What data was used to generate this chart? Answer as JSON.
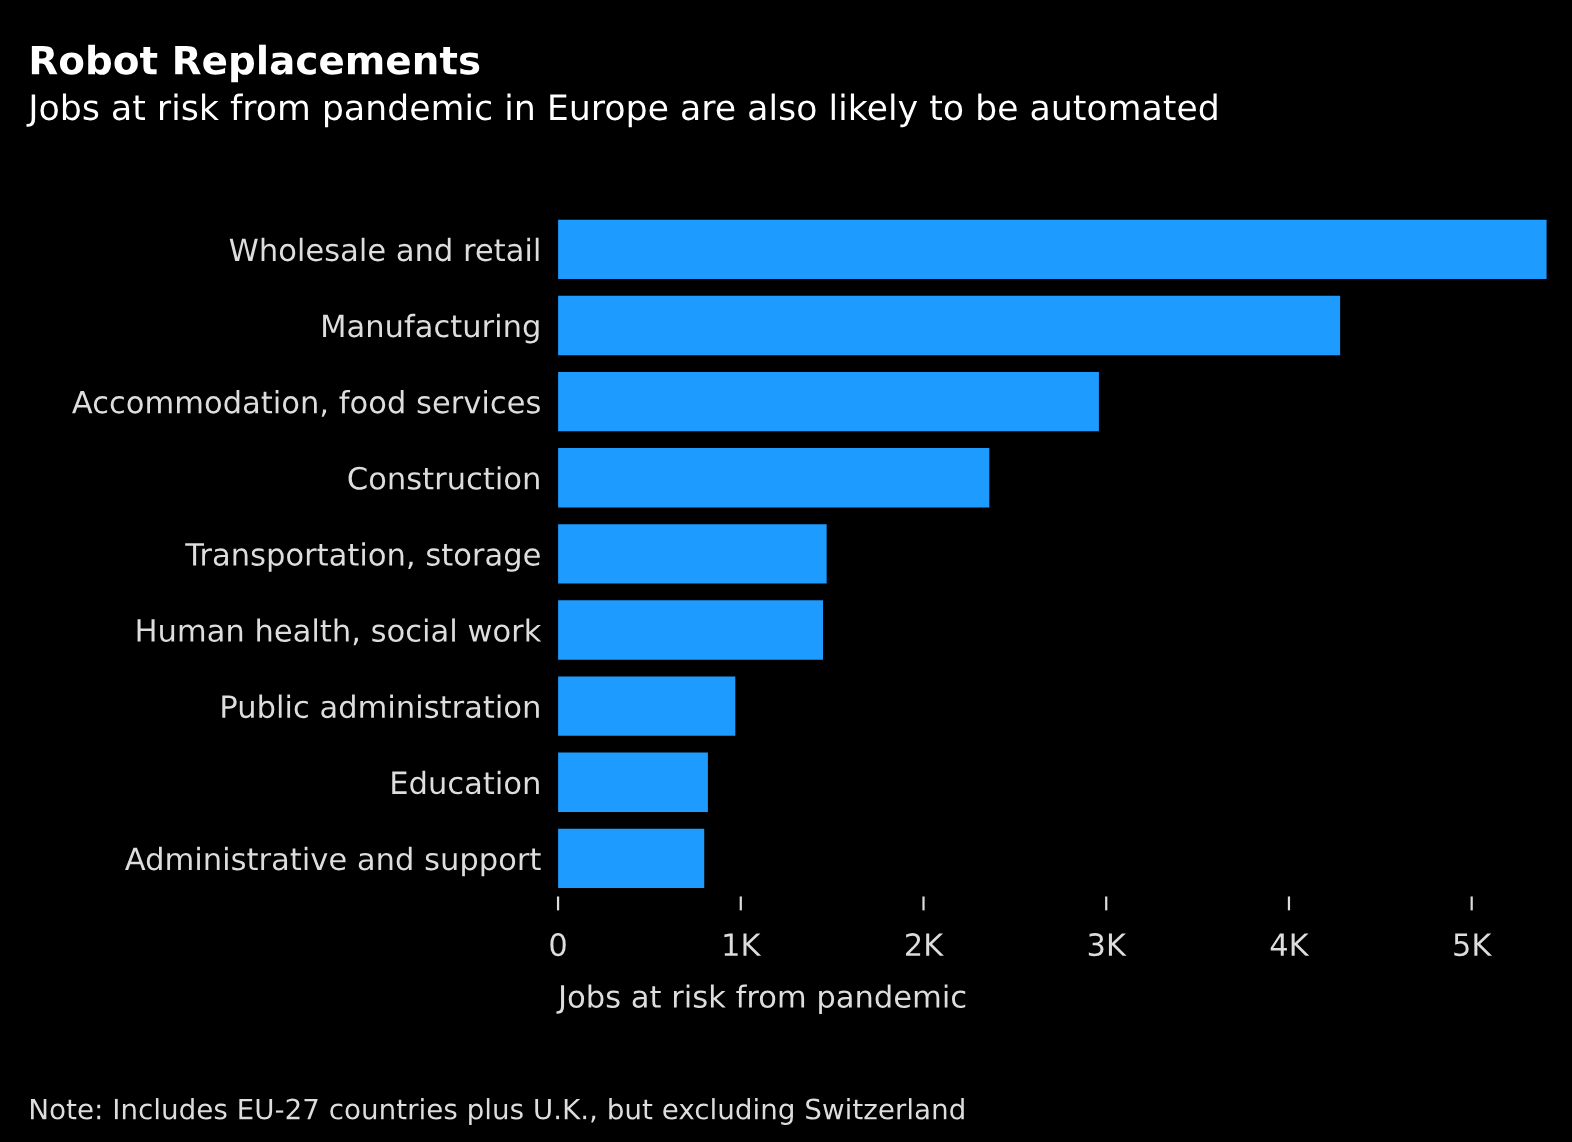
{
  "chart_data": {
    "type": "bar",
    "orientation": "horizontal",
    "title": "Robot Replacements",
    "subtitle": "Jobs at risk from pandemic in Europe are also likely to be automated",
    "xlabel": "Jobs at risk from pandemic",
    "categories": [
      "Wholesale and retail",
      "Manufacturing",
      "Accommodation, food services",
      "Construction",
      "Transportation, storage",
      "Human health, social work",
      "Public administration",
      "Education",
      "Administrative and support"
    ],
    "values": [
      5410,
      4280,
      2960,
      2360,
      1470,
      1450,
      970,
      820,
      800
    ],
    "color": "#1e9bff",
    "xlim": [
      0,
      5420
    ],
    "xticks": [
      0,
      {
        "value": 1000,
        "label": "1K"
      },
      {
        "value": 2000,
        "label": "2K"
      },
      {
        "value": 3000,
        "label": "3K"
      },
      {
        "value": 4000,
        "label": "4K"
      },
      {
        "value": 5000,
        "label": "5K"
      }
    ],
    "grid": false,
    "annotations": [
      "Note: Includes EU-27 countries plus U.K., but excluding Switzerland"
    ]
  }
}
